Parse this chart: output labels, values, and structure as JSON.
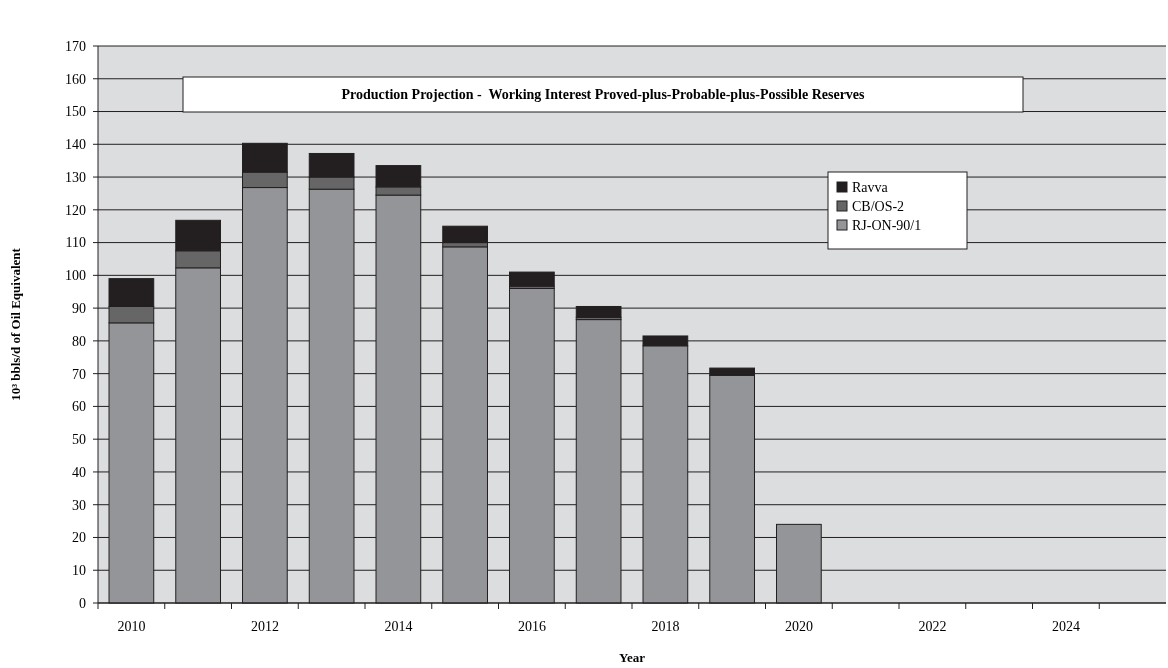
{
  "chart_data": {
    "type": "bar",
    "title": "Production Projection -  Working Interest Proved-plus-Probable-plus-Possible Reserves",
    "xlabel": "Year",
    "ylabel": "10³ bbls/d of Oil Equivalent",
    "categories": [
      "2010",
      null,
      "2012",
      null,
      "2014",
      null,
      "2016",
      null,
      "2018",
      null,
      "2020",
      null,
      "2022",
      null,
      "2024",
      null
    ],
    "stacked": true,
    "series": [
      {
        "name": "RJ-ON-90/1",
        "color": "#939598",
        "values": [
          85.5,
          102.3,
          126.8,
          126.3,
          124.5,
          108.7,
          96,
          86.5,
          78.5,
          69.5,
          24,
          null,
          null,
          null,
          null,
          null
        ]
      },
      {
        "name": "CB/OS-2",
        "color": "#666666",
        "values": [
          5,
          5.2,
          4.7,
          3.7,
          2.5,
          1.3,
          0.7,
          0.7,
          0,
          0,
          0,
          null,
          null,
          null,
          null,
          null
        ]
      },
      {
        "name": "Ravva",
        "color": "#231f20",
        "values": [
          8.5,
          9.3,
          8.8,
          7.2,
          6.5,
          5,
          4.3,
          3.3,
          3,
          2.2,
          0,
          null,
          null,
          null,
          null,
          null
        ]
      }
    ],
    "ylim": [
      0,
      170
    ],
    "yticks": [
      0,
      10,
      20,
      30,
      40,
      50,
      60,
      70,
      80,
      90,
      100,
      110,
      120,
      130,
      140,
      150,
      160,
      170
    ],
    "grid": "y",
    "legend": "top right"
  }
}
